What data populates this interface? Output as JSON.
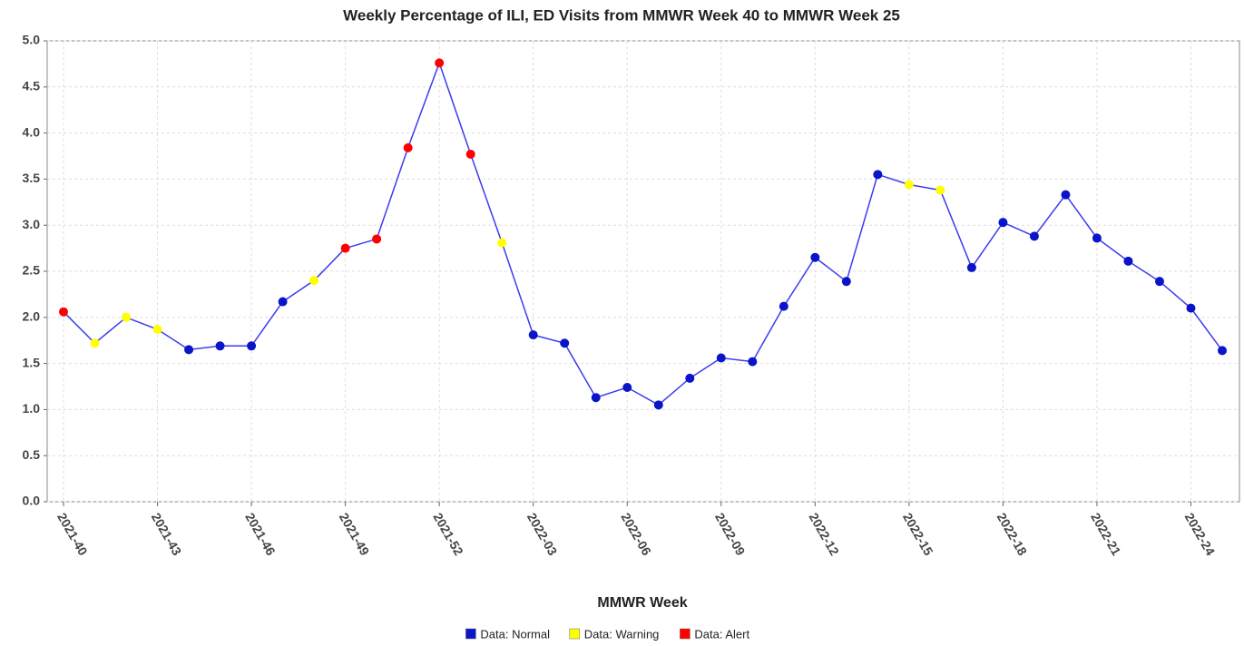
{
  "chart_data": {
    "type": "line",
    "title": "Weekly Percentage of ILI, ED Visits from MMWR Week 40 to MMWR Week 25",
    "x_label": "MMWR Week",
    "categories": [
      "2021-40",
      null,
      null,
      "2021-43",
      null,
      null,
      "2021-46",
      null,
      null,
      "2021-49",
      null,
      null,
      "2021-52",
      null,
      null,
      "2022-03",
      null,
      null,
      "2022-06",
      null,
      null,
      "2022-09",
      null,
      null,
      "2022-12",
      null,
      null,
      "2022-15",
      null,
      null,
      "2022-18",
      null,
      null,
      "2022-21",
      null,
      null,
      "2022-24",
      null
    ],
    "values": [
      2.06,
      1.72,
      2.0,
      1.87,
      1.65,
      1.69,
      1.69,
      2.17,
      2.4,
      2.75,
      2.85,
      3.84,
      4.76,
      3.77,
      2.81,
      1.81,
      1.72,
      1.13,
      1.24,
      1.05,
      1.34,
      1.56,
      1.52,
      2.12,
      2.65,
      2.39,
      3.55,
      3.44,
      3.38,
      2.54,
      3.03,
      2.88,
      3.33,
      2.86,
      2.61,
      2.39,
      2.1,
      1.64
    ],
    "line_color": "#3b3bf0",
    "series": [
      {
        "name": "Data: Normal",
        "color": "#0a14c8"
      },
      {
        "name": "Data: Warning",
        "color": "#ffff00"
      },
      {
        "name": "Data: Alert",
        "color": "#ff0000"
      }
    ],
    "point_series": [
      2,
      1,
      1,
      1,
      0,
      0,
      0,
      0,
      1,
      2,
      2,
      2,
      2,
      2,
      1,
      0,
      0,
      0,
      0,
      0,
      0,
      0,
      0,
      0,
      0,
      0,
      0,
      1,
      1,
      0,
      0,
      0,
      0,
      0,
      0,
      0,
      0,
      0
    ],
    "ylim": [
      0,
      5
    ],
    "yticks": [
      {
        "value": 0,
        "label": "0.0"
      },
      0.5,
      {
        "value": 1,
        "label": "1.0"
      },
      1.5,
      {
        "value": 2,
        "label": "2.0"
      },
      2.5,
      {
        "value": 3,
        "label": "3.0"
      },
      3.5,
      {
        "value": 4,
        "label": "4.0"
      },
      4.5,
      {
        "value": 5,
        "label": "5.0"
      }
    ],
    "grid": true
  }
}
